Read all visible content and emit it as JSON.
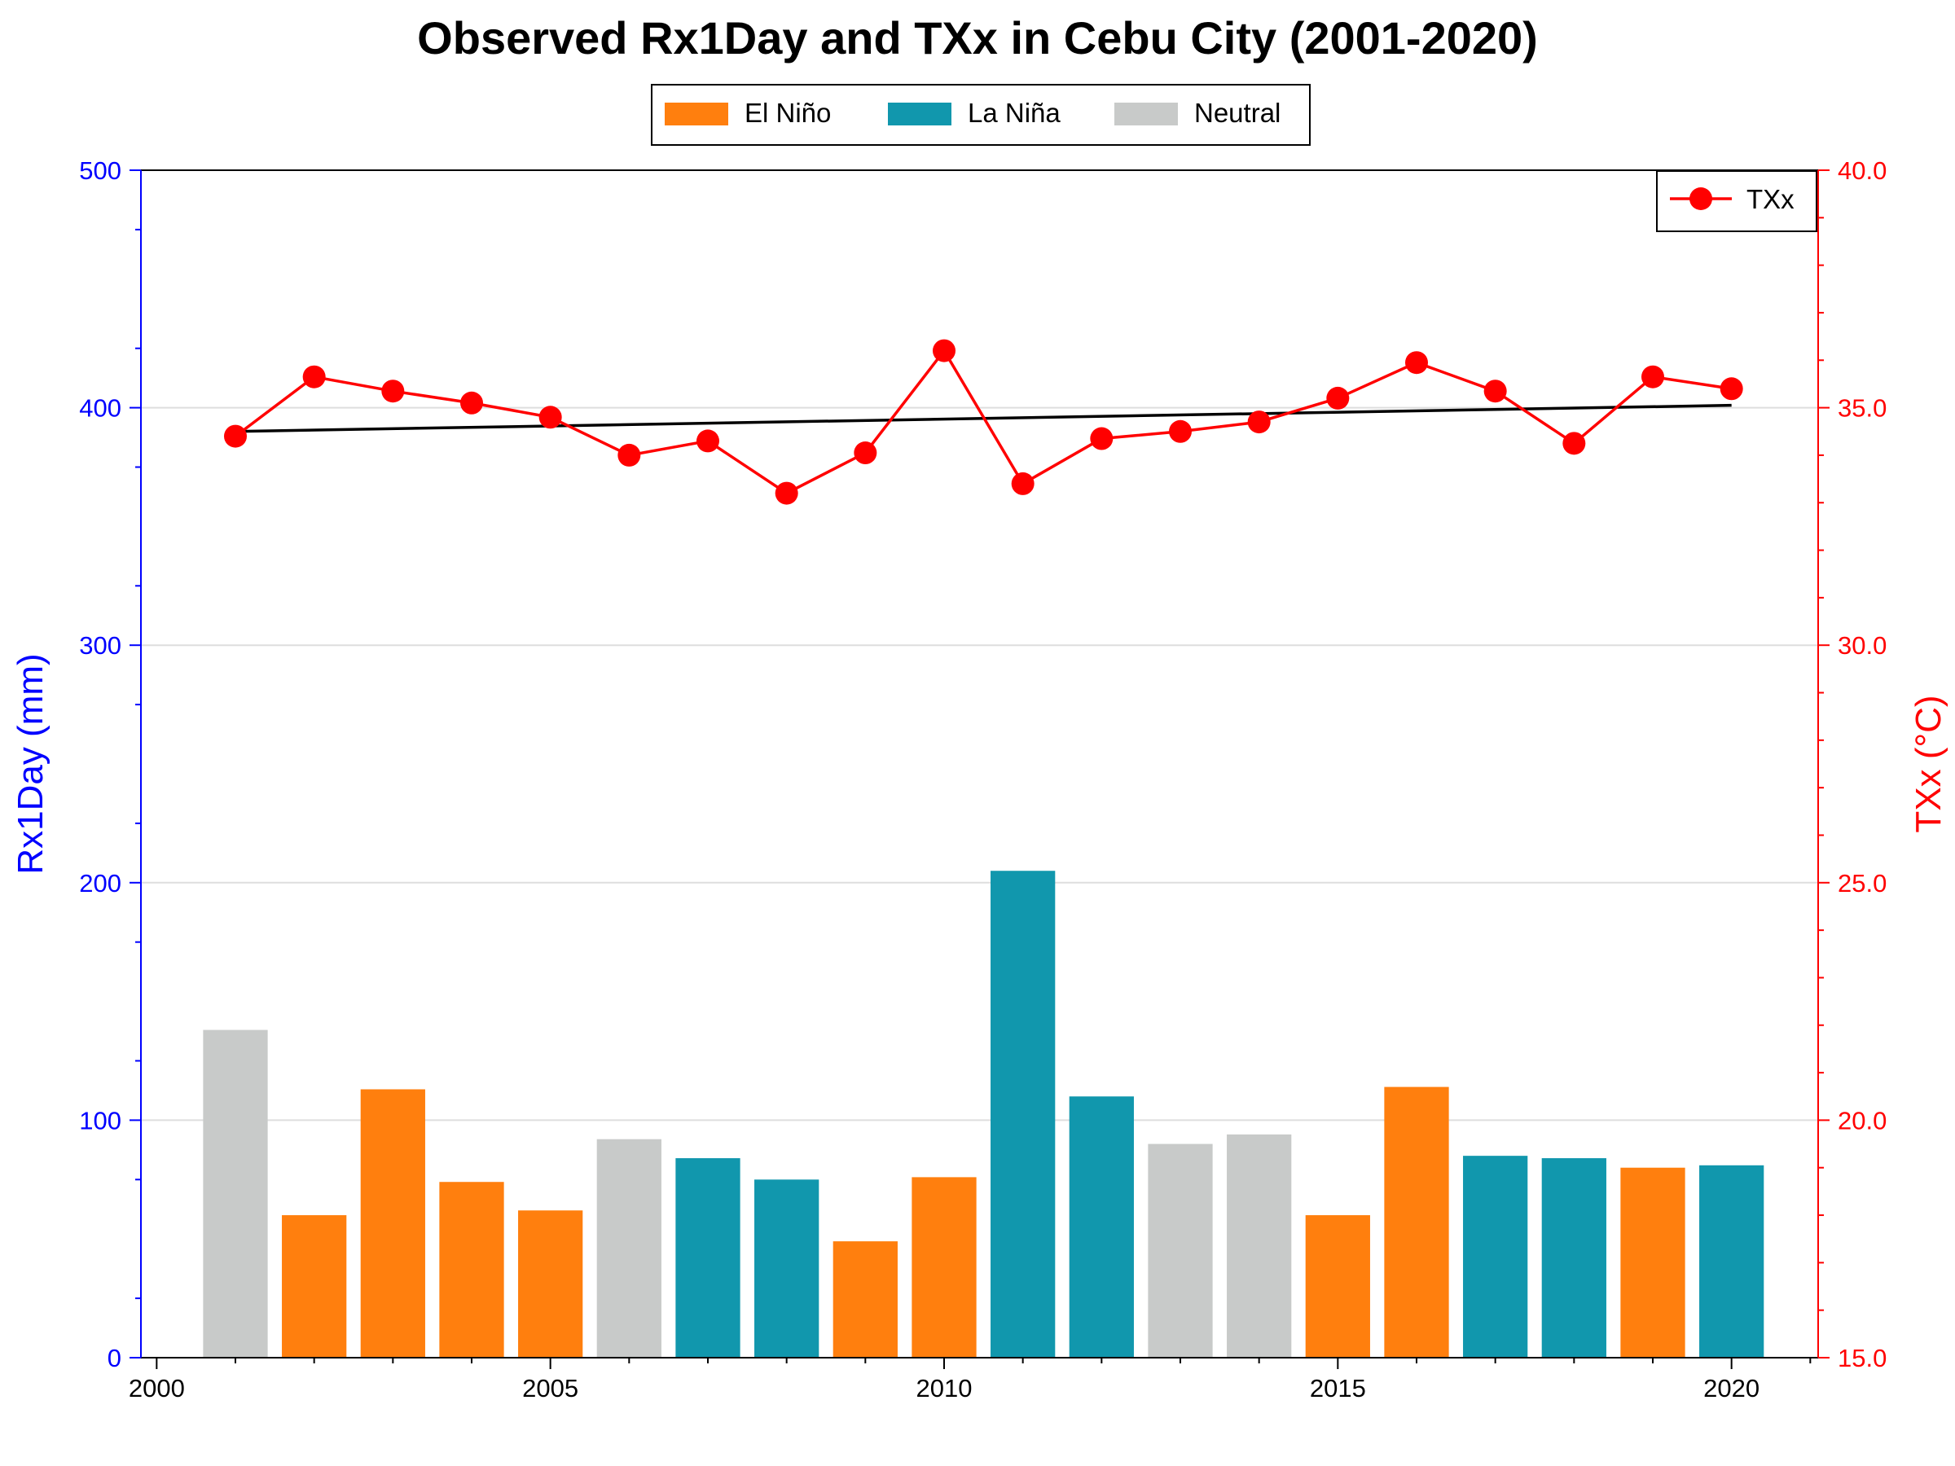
{
  "chart_data": {
    "type": "bar+line",
    "title": "Observed Rx1Day and TXx in Cebu City (2001-2020)",
    "x": [
      2001,
      2002,
      2003,
      2004,
      2005,
      2006,
      2007,
      2008,
      2009,
      2010,
      2011,
      2012,
      2013,
      2014,
      2015,
      2016,
      2017,
      2018,
      2019,
      2020
    ],
    "x_ticks": [
      "2000",
      "2005",
      "2010",
      "2015",
      "2020"
    ],
    "xlim": [
      1999.8,
      2021.1
    ],
    "bar_series": {
      "name": "Rx1Day",
      "values": [
        138,
        60,
        113,
        74,
        62,
        92,
        84,
        75,
        49,
        76,
        205,
        110,
        90,
        94,
        60,
        114,
        85,
        84,
        80,
        81
      ],
      "enso_phase": [
        "Neutral",
        "El Niño",
        "El Niño",
        "El Niño",
        "El Niño",
        "Neutral",
        "La Niña",
        "La Niña",
        "El Niño",
        "El Niño",
        "La Niña",
        "La Niña",
        "Neutral",
        "Neutral",
        "El Niño",
        "El Niño",
        "La Niña",
        "La Niña",
        "El Niño",
        "La Niña"
      ]
    },
    "line_series": {
      "name": "TXx",
      "values": [
        34.4,
        35.65,
        35.35,
        35.1,
        34.8,
        34.0,
        34.3,
        33.2,
        34.05,
        36.2,
        33.4,
        34.35,
        34.5,
        34.7,
        35.2,
        35.95,
        35.35,
        34.25,
        35.65,
        35.4
      ],
      "color": "#ff0000"
    },
    "trend_line": {
      "start": [
        2001,
        34.5
      ],
      "end": [
        2020,
        35.05
      ],
      "color": "#000000"
    },
    "left_axis": {
      "label": "Rx1Day (mm)",
      "ylim": [
        0,
        500
      ],
      "ticks": [
        "0",
        "100",
        "200",
        "300",
        "400",
        "500"
      ],
      "color": "#0000ff"
    },
    "right_axis": {
      "label": "TXx (°C)",
      "ylim": [
        15,
        40
      ],
      "ticks": [
        "15.0",
        "20.0",
        "25.0",
        "30.0",
        "35.0",
        "40.0"
      ],
      "color": "#ff0000"
    },
    "grid": true,
    "legend_enso": {
      "placement": "top-center",
      "items": [
        {
          "label": "El Niño",
          "color": "#ff7f0e"
        },
        {
          "label": "La Niña",
          "color": "#1197ad"
        },
        {
          "label": "Neutral",
          "color": "#c8cac9"
        }
      ]
    },
    "legend_line": {
      "placement": "top-right",
      "label": "TXx"
    }
  }
}
